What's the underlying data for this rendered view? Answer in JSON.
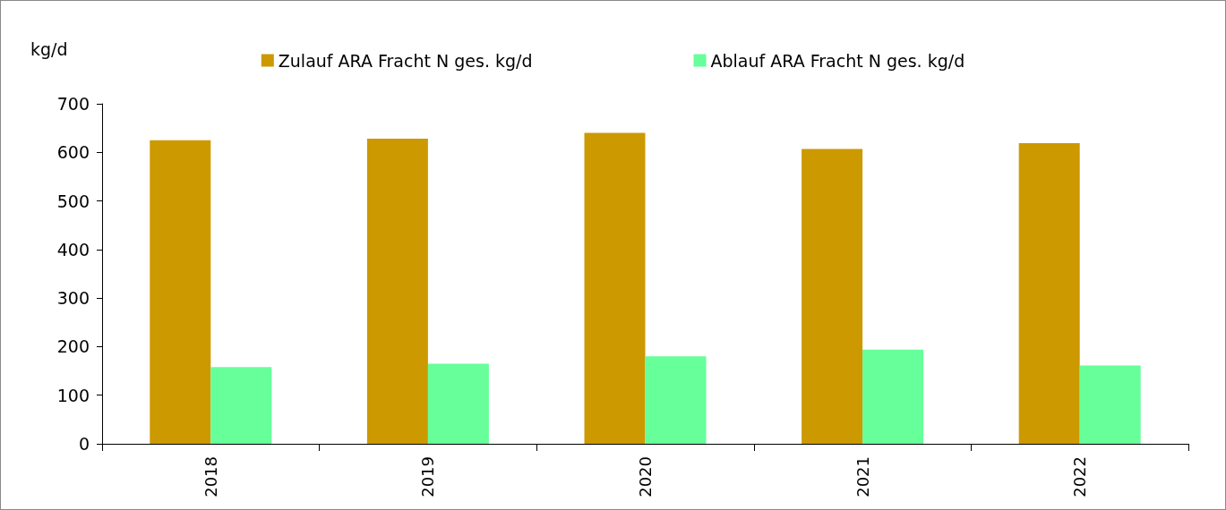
{
  "chart_data": {
    "type": "bar",
    "ylabel": "kg/d",
    "categories": [
      "2018",
      "2019",
      "2020",
      "2021",
      "2022"
    ],
    "series": [
      {
        "name": "Zulauf ARA Fracht N ges. kg/d",
        "color": "#cc9900",
        "values": [
          625,
          628,
          640,
          607,
          619
        ]
      },
      {
        "name": "Ablauf ARA Fracht N ges. kg/d",
        "color": "#66ff99",
        "values": [
          158,
          165,
          180,
          194,
          161
        ]
      }
    ],
    "ylim": [
      0,
      700
    ],
    "yticks": [
      0,
      100,
      200,
      300,
      400,
      500,
      600,
      700
    ],
    "grid": false,
    "legend": "top"
  }
}
